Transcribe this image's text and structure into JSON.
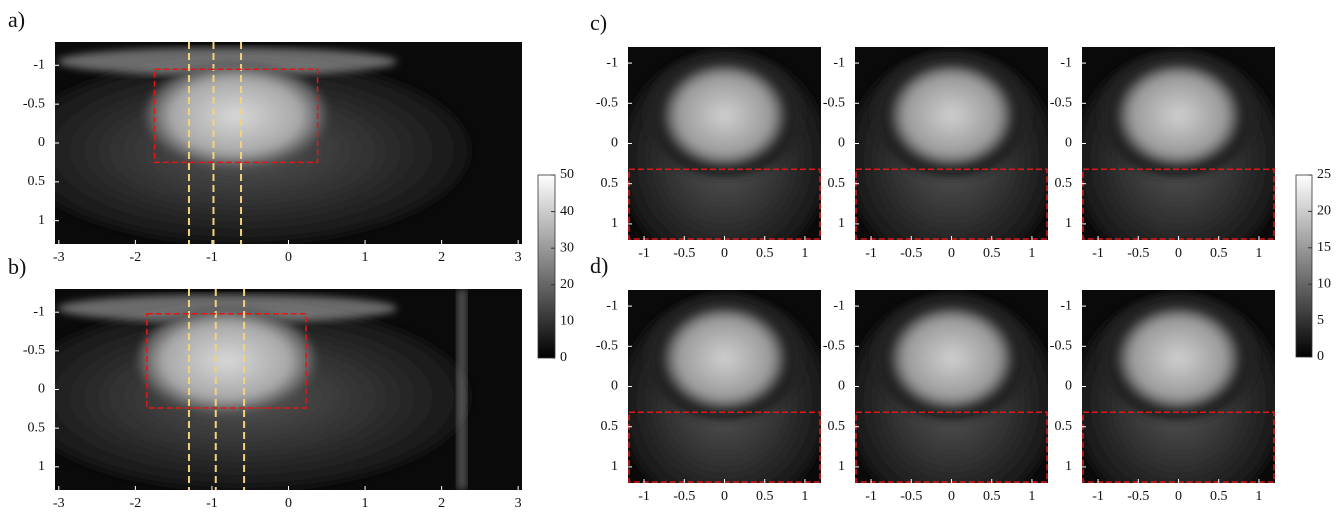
{
  "sagittal": {
    "xlim": [
      -3.05,
      3.05
    ],
    "ylim": [
      -1.3,
      1.3
    ],
    "xticks": [
      -3,
      -2,
      -1,
      0,
      1,
      2,
      3
    ],
    "yticks": [
      -1,
      -0.5,
      0,
      0.5,
      1
    ],
    "panels": [
      {
        "label": "a)"
      },
      {
        "label": "b)"
      }
    ],
    "colorbar": {
      "lim": [
        0,
        50
      ],
      "ticks": [
        0,
        10,
        20,
        30,
        40,
        50
      ]
    }
  },
  "coronal": {
    "xlim": [
      -1.2,
      1.2
    ],
    "ylim": [
      -1.2,
      1.2
    ],
    "xticks": [
      -1,
      -0.5,
      0,
      0.5,
      1
    ],
    "yticks": [
      -1,
      -0.5,
      0,
      0.5,
      1
    ],
    "panels": [
      {
        "label": "c)"
      },
      {
        "label": "d)"
      }
    ],
    "colorbar": {
      "lim": [
        0,
        25
      ],
      "ticks": [
        0,
        5,
        10,
        15,
        20,
        25
      ]
    }
  }
}
